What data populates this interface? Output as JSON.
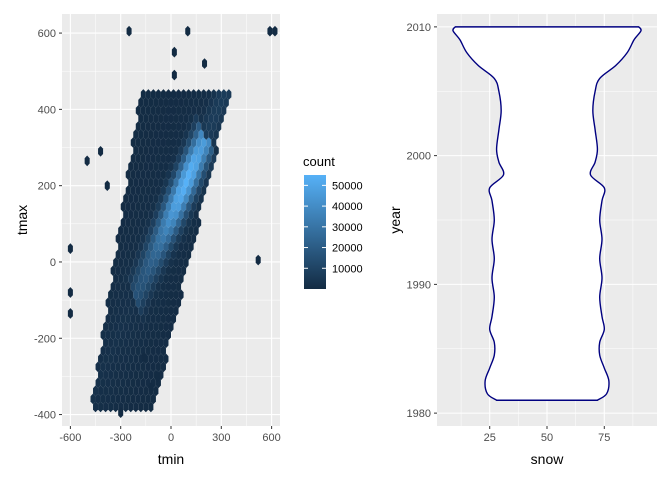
{
  "chart_data": [
    {
      "type": "heatmap",
      "subtype": "hexbin",
      "xlabel": "tmin",
      "ylabel": "tmax",
      "xlim": [
        -650,
        650
      ],
      "ylim": [
        -430,
        650
      ],
      "x_ticks": [
        {
          "value": -600,
          "label": "-600"
        },
        {
          "value": -300,
          "label": "-300"
        },
        {
          "value": 0,
          "label": "0"
        },
        {
          "value": 300,
          "label": "300"
        },
        {
          "value": 600,
          "label": "600"
        }
      ],
      "y_ticks": [
        {
          "value": -400,
          "label": "-400"
        },
        {
          "value": -200,
          "label": "-200"
        },
        {
          "value": 0,
          "label": "0"
        },
        {
          "value": 200,
          "label": "200"
        },
        {
          "value": 400,
          "label": "400"
        },
        {
          "value": 600,
          "label": "600"
        }
      ],
      "grid": true,
      "background": "#ebebeb",
      "legend": {
        "title": "count",
        "position": "right",
        "color_low": "#132b43",
        "color_high": "#56b1f7",
        "range": [
          1,
          55000
        ],
        "breaks": [
          {
            "value": 10000,
            "label": "10000"
          },
          {
            "value": 20000,
            "label": "20000"
          },
          {
            "value": 30000,
            "label": "30000"
          },
          {
            "value": 40000,
            "label": "40000"
          },
          {
            "value": 50000,
            "label": "50000"
          }
        ]
      },
      "isolated_bins": [
        [
          -250,
          605
        ],
        [
          100,
          605
        ],
        [
          590,
          605
        ],
        [
          620,
          605
        ],
        [
          200,
          520
        ],
        [
          20,
          550
        ],
        [
          20,
          490
        ],
        [
          -500,
          265
        ],
        [
          -420,
          290
        ],
        [
          -380,
          200
        ],
        [
          -600,
          35
        ],
        [
          -600,
          -80
        ],
        [
          -600,
          -135
        ],
        [
          520,
          5
        ],
        [
          -300,
          -395
        ],
        [
          -120,
          -330
        ],
        [
          -80,
          -300
        ],
        [
          -160,
          -250
        ]
      ],
      "density_ridge": {
        "start": [
          -200,
          -80
        ],
        "end": [
          180,
          300
        ],
        "peak_count": 55000,
        "spread_sd": 38
      }
    },
    {
      "type": "violin",
      "xlabel": "snow",
      "ylabel": "year",
      "xlim": [
        2,
        98
      ],
      "ylim": [
        1979,
        2011
      ],
      "x_ticks": [
        {
          "value": 25,
          "label": "25"
        },
        {
          "value": 50,
          "label": "50"
        },
        {
          "value": 75,
          "label": "75"
        }
      ],
      "y_ticks": [
        {
          "value": 1980,
          "label": "1980"
        },
        {
          "value": 1990,
          "label": "1990"
        },
        {
          "value": 2000,
          "label": "2000"
        },
        {
          "value": 2010,
          "label": "2010"
        }
      ],
      "grid": true,
      "background": "#ebebeb",
      "outline_color": "#000080",
      "fill_color": "#ffffff",
      "center_x": 50,
      "profile": [
        {
          "year": 1981,
          "half_width": 22
        },
        {
          "year": 1981.5,
          "half_width": 26
        },
        {
          "year": 1982.5,
          "half_width": 27
        },
        {
          "year": 1983.5,
          "half_width": 25
        },
        {
          "year": 1984.5,
          "half_width": 23
        },
        {
          "year": 1985.5,
          "half_width": 23
        },
        {
          "year": 1986.5,
          "half_width": 25
        },
        {
          "year": 1987.5,
          "half_width": 24
        },
        {
          "year": 1989,
          "half_width": 23
        },
        {
          "year": 1990.5,
          "half_width": 24
        },
        {
          "year": 1992,
          "half_width": 23
        },
        {
          "year": 1993.5,
          "half_width": 24
        },
        {
          "year": 1995,
          "half_width": 23
        },
        {
          "year": 1996.5,
          "half_width": 24
        },
        {
          "year": 1997.5,
          "half_width": 25
        },
        {
          "year": 1998.5,
          "half_width": 19
        },
        {
          "year": 1999.5,
          "half_width": 21
        },
        {
          "year": 2000.5,
          "half_width": 22
        },
        {
          "year": 2002,
          "half_width": 21
        },
        {
          "year": 2003.5,
          "half_width": 20
        },
        {
          "year": 2005,
          "half_width": 21
        },
        {
          "year": 2006,
          "half_width": 23
        },
        {
          "year": 2007,
          "half_width": 30
        },
        {
          "year": 2008,
          "half_width": 35
        },
        {
          "year": 2009,
          "half_width": 38
        },
        {
          "year": 2009.7,
          "half_width": 41
        },
        {
          "year": 2010,
          "half_width": 40
        }
      ]
    }
  ]
}
